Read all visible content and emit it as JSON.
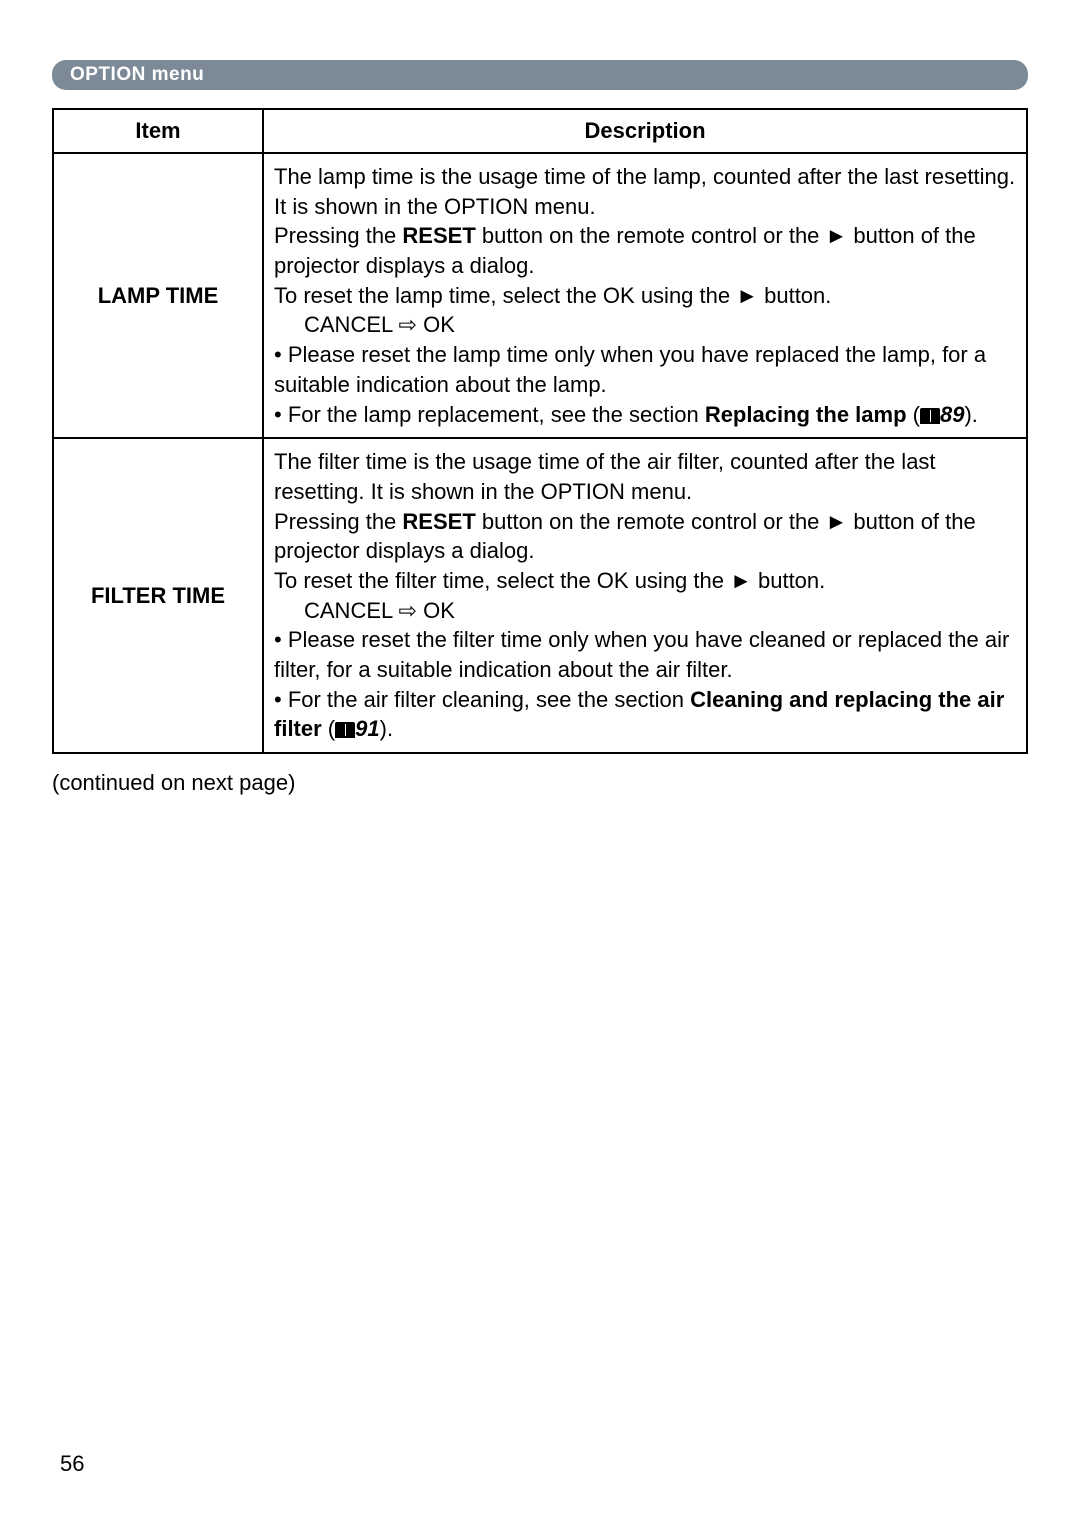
{
  "header": {
    "title": "OPTION menu"
  },
  "table": {
    "columns": {
      "item": "Item",
      "description": "Description"
    },
    "rows": [
      {
        "item": "LAMP TIME",
        "p1a": "The lamp time is the usage time of the lamp, counted after the last resetting. It is shown in the OPTION menu.",
        "p1b_pre": "Pressing the ",
        "p1b_reset": "RESET",
        "p1b_post": " button on the remote control or the ► button of the projector displays a dialog.",
        "p1c": "To reset the lamp time, select the OK using the ► button.",
        "p1d": "CANCEL ⇨ OK",
        "p2a": "• Please reset the lamp time only when you have replaced the lamp, for a suitable indication about the lamp.",
        "p2b_pre": "• For the lamp replacement, see the section ",
        "p2b_bold": "Replacing the lamp",
        "p2b_open": " (",
        "p2b_page": "89",
        "p2b_close": ")."
      },
      {
        "item": "FILTER TIME",
        "p1a": "The filter time is the usage time of the air filter, counted after the last resetting. It is shown in the OPTION menu.",
        "p1b_pre": "Pressing the ",
        "p1b_reset": "RESET",
        "p1b_post": " button on the remote control or the ► button of the projector displays a dialog.",
        "p1c": "To reset the filter time, select the OK using the ► button.",
        "p1d": "CANCEL ⇨ OK",
        "p2a": "• Please reset the filter time only when you have cleaned or replaced the air filter, for a suitable indication about the air filter.",
        "p2b_pre": "• For the air filter cleaning, see the section ",
        "p2b_bold": "Cleaning and replacing the air filter",
        "p2b_open": " (",
        "p2b_page": "91",
        "p2b_close": ")."
      }
    ]
  },
  "continued": "(continued on next page)",
  "pageNumber": "56",
  "colors": {
    "header_bg": "#7c8a98",
    "header_text": "#ffffff",
    "border": "#000000",
    "page_bg": "#ffffff"
  },
  "typography": {
    "header_fontsize": 19,
    "body_fontsize": 22
  }
}
